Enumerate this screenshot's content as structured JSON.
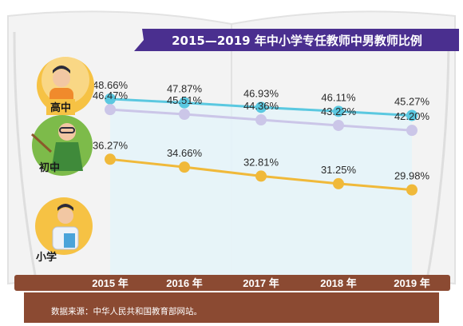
{
  "chart_data": {
    "type": "line",
    "title": "2015—2019 年中小学专任教师中男教师比例",
    "categories": [
      "2015 年",
      "2016 年",
      "2017 年",
      "2018 年",
      "2019 年"
    ],
    "series": [
      {
        "name": "高中",
        "values": [
          48.66,
          47.87,
          46.93,
          46.11,
          45.27
        ],
        "labels": [
          "48.66%",
          "47.87%",
          "46.93%",
          "46.11%",
          "45.27%"
        ],
        "color": "#5ac8e0",
        "fill": "#e3f4f9"
      },
      {
        "name": "初中",
        "values": [
          46.47,
          45.51,
          44.36,
          43.22,
          42.2
        ],
        "labels": [
          "46.47%",
          "45.51%",
          "44.36%",
          "43.22%",
          "42.20%"
        ],
        "color": "#cbc6e8",
        "fill": "#eef3fb"
      },
      {
        "name": "小学",
        "values": [
          36.27,
          34.66,
          32.81,
          31.25,
          29.98
        ],
        "labels": [
          "36.27%",
          "34.66%",
          "32.81%",
          "31.25%",
          "29.98%"
        ],
        "color": "#f0b93a",
        "fill": "#fbf1dd"
      }
    ],
    "source": "数据来源：中华人民共和国教育部网站。"
  },
  "colors": {
    "title_bar": "#4a2f8f",
    "shelf": "#8b4a32",
    "book_page": "#f2f2f2",
    "book_edge": "#e0e0e0"
  }
}
